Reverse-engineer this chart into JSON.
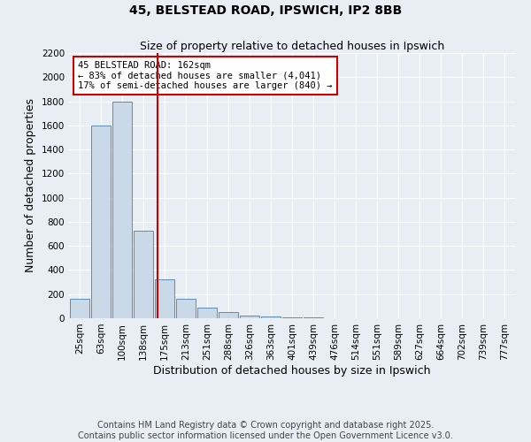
{
  "title": "45, BELSTEAD ROAD, IPSWICH, IP2 8BB",
  "subtitle": "Size of property relative to detached houses in Ipswich",
  "xlabel": "Distribution of detached houses by size in Ipswich",
  "ylabel": "Number of detached properties",
  "bin_labels": [
    "25sqm",
    "63sqm",
    "100sqm",
    "138sqm",
    "175sqm",
    "213sqm",
    "251sqm",
    "288sqm",
    "326sqm",
    "363sqm",
    "401sqm",
    "439sqm",
    "476sqm",
    "514sqm",
    "551sqm",
    "589sqm",
    "627sqm",
    "664sqm",
    "702sqm",
    "739sqm",
    "777sqm"
  ],
  "bar_values": [
    160,
    1600,
    1800,
    725,
    325,
    160,
    85,
    48,
    25,
    18,
    10,
    5,
    3,
    1,
    0,
    0,
    0,
    0,
    0,
    0,
    0
  ],
  "bar_color": "#c9d9e8",
  "bar_edge_color": "#5b8db8",
  "background_color": "#e8eef4",
  "grid_color": "#ffffff",
  "property_label": "45 BELSTEAD ROAD: 162sqm",
  "annotation_line1": "← 83% of detached houses are smaller (4,041)",
  "annotation_line2": "17% of semi-detached houses are larger (840) →",
  "vline_color": "#cc0000",
  "ylim": [
    0,
    2200
  ],
  "yticks": [
    0,
    200,
    400,
    600,
    800,
    1000,
    1200,
    1400,
    1600,
    1800,
    2000,
    2200
  ],
  "footer_line1": "Contains HM Land Registry data © Crown copyright and database right 2025.",
  "footer_line2": "Contains public sector information licensed under the Open Government Licence v3.0.",
  "title_fontsize": 10,
  "subtitle_fontsize": 9,
  "axis_label_fontsize": 9,
  "tick_fontsize": 7.5,
  "footer_fontsize": 7,
  "annotation_fontsize": 7.5
}
